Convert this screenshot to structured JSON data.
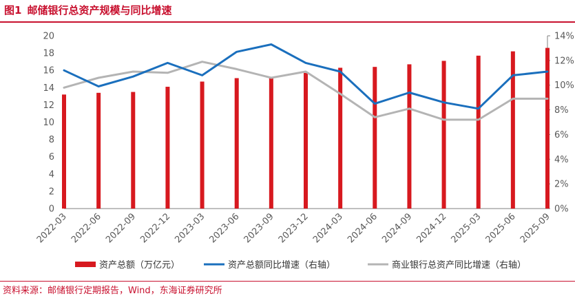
{
  "header": {
    "figure_no": "图1",
    "title": "邮储银行总资产规模与同比增速"
  },
  "source": "资料来源：邮储银行定期报告，Wind，东海证券研究所",
  "colors": {
    "bar": "#d7191f",
    "line_psbc": "#1a6fbd",
    "line_sector": "#b4b4b4",
    "accent": "#c8102e"
  },
  "chart_data": {
    "type": "bar+line",
    "categories": [
      "2022-03",
      "2022-06",
      "2022-09",
      "2022-12",
      "2023-03",
      "2023-06",
      "2023-09",
      "2023-12",
      "2024-03",
      "2024-06",
      "2024-09",
      "2024-12",
      "2025-03",
      "2025-06",
      "2025-09"
    ],
    "left_axis": {
      "ylim": [
        0,
        20
      ],
      "ticks": [
        "0",
        "2",
        "4",
        "6",
        "8",
        "10",
        "12",
        "14",
        "16",
        "18",
        "20"
      ]
    },
    "right_axis": {
      "ylim": [
        0,
        14
      ],
      "ticks": [
        "0%",
        "2%",
        "4%",
        "6%",
        "8%",
        "10%",
        "12%",
        "14%"
      ]
    },
    "series": [
      {
        "name": "资产总额（万亿元）",
        "type": "bar",
        "axis": "left",
        "values": [
          13.2,
          13.4,
          13.5,
          14.1,
          14.7,
          15.1,
          15.1,
          15.7,
          16.3,
          16.4,
          16.7,
          17.1,
          17.7,
          18.2,
          18.6
        ]
      },
      {
        "name": "资产总额同比增速（右轴）",
        "type": "line",
        "axis": "right",
        "values": [
          11.2,
          9.9,
          10.7,
          11.8,
          10.8,
          12.7,
          13.3,
          11.8,
          11.1,
          8.5,
          9.4,
          8.6,
          8.1,
          10.8,
          11.1
        ]
      },
      {
        "name": "商业银行总资产同比增速（右轴）",
        "type": "line",
        "axis": "right",
        "values": [
          9.8,
          10.6,
          11.1,
          11.0,
          11.9,
          11.3,
          10.6,
          11.1,
          9.3,
          7.4,
          8.1,
          7.2,
          7.2,
          8.9,
          8.9
        ]
      }
    ]
  }
}
